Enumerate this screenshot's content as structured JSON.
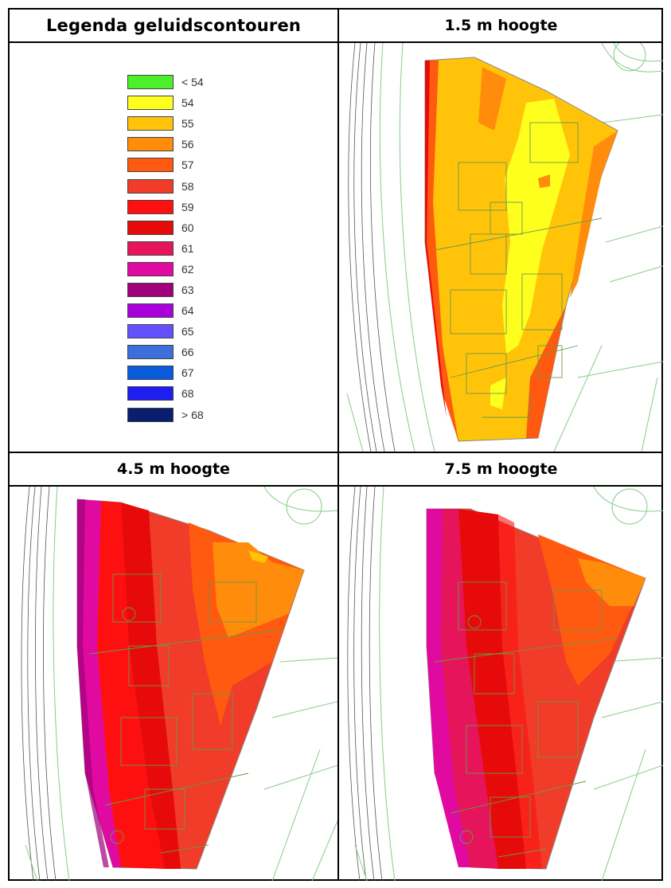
{
  "headers": {
    "legend_title": "Legenda geluidscontouren",
    "panel_1": "1.5 m hoogte",
    "panel_2": "4.5 m hoogte",
    "panel_3": "7.5 m hoogte"
  },
  "legend": [
    {
      "label": "< 54",
      "color": "#4cf02a"
    },
    {
      "label": "54",
      "color": "#ffff1e"
    },
    {
      "label": "55",
      "color": "#ffc40a"
    },
    {
      "label": "56",
      "color": "#ff8c0a"
    },
    {
      "label": "57",
      "color": "#ff5a0f"
    },
    {
      "label": "58",
      "color": "#f03c28"
    },
    {
      "label": "59",
      "color": "#ff1010"
    },
    {
      "label": "60",
      "color": "#e60a0a"
    },
    {
      "label": "61",
      "color": "#e6145a"
    },
    {
      "label": "62",
      "color": "#e00aa0"
    },
    {
      "label": "63",
      "color": "#a0007a"
    },
    {
      "label": "64",
      "color": "#aa00dc"
    },
    {
      "label": "65",
      "color": "#6450ff"
    },
    {
      "label": "66",
      "color": "#3c6edc"
    },
    {
      "label": "67",
      "color": "#0a5adc"
    },
    {
      "label": "68",
      "color": "#1e1ef0"
    },
    {
      "label": "> 68",
      "color": "#0a1e6e"
    }
  ]
}
